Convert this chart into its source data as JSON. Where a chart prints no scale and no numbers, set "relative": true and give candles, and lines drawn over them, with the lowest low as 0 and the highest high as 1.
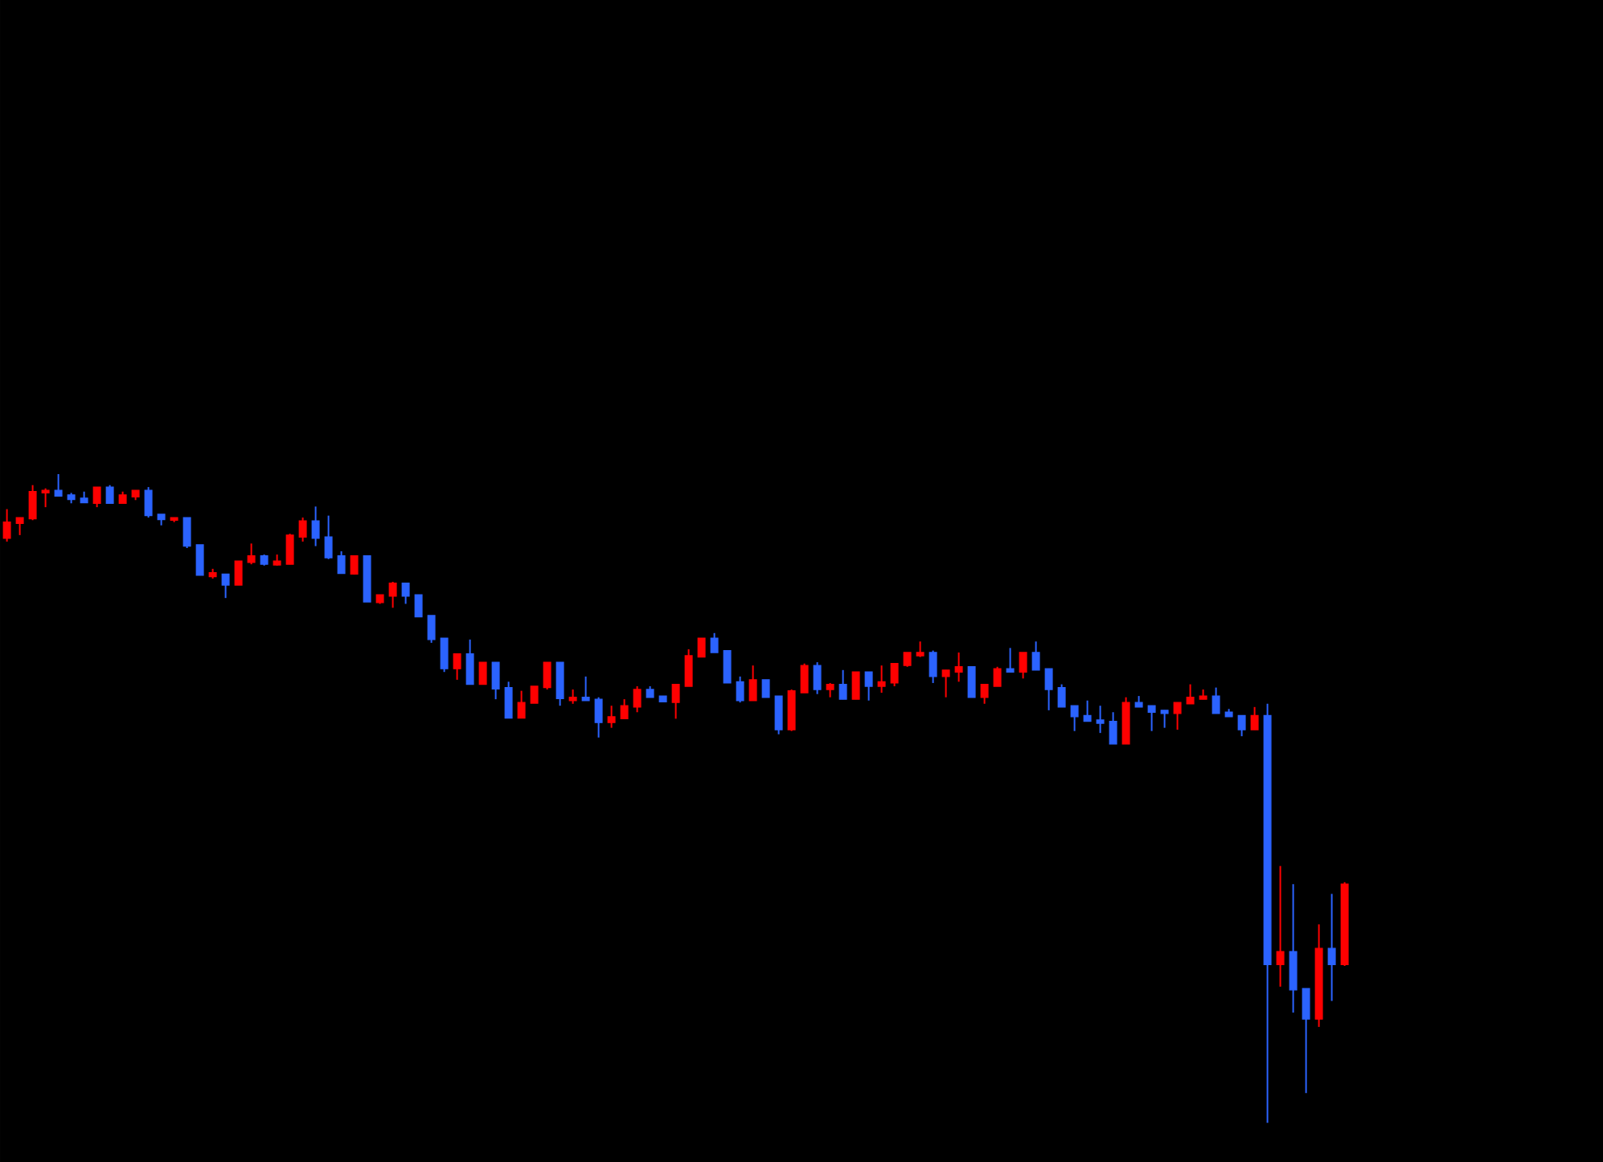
{
  "chart_data": {
    "type": "candlestick",
    "relative": true,
    "categories": [
      null,
      null,
      null,
      null,
      null,
      null,
      null,
      null,
      null,
      null,
      null,
      null,
      null,
      null,
      null,
      null,
      null,
      null,
      null,
      null,
      null,
      null,
      null,
      null,
      null,
      null,
      null,
      null,
      null,
      null,
      null,
      null,
      null,
      null,
      null,
      null,
      null,
      null,
      null,
      null,
      null,
      null,
      null,
      null,
      null,
      null,
      null,
      null,
      null,
      null,
      null,
      null,
      null,
      null,
      null,
      null,
      null,
      null,
      null,
      null,
      null,
      null,
      null,
      null,
      null,
      null,
      null,
      null,
      null,
      null,
      null,
      null,
      null,
      null,
      null,
      null,
      null,
      null,
      null,
      null,
      null,
      null,
      null,
      null,
      null,
      null,
      null,
      null,
      null,
      null,
      null,
      null,
      null,
      null,
      null,
      null,
      null,
      null,
      null,
      null,
      null,
      null,
      null,
      null,
      null
    ],
    "ohlc": [
      [
        0.901,
        0.946,
        0.896,
        0.926
      ],
      [
        0.924,
        0.933,
        0.906,
        0.933
      ],
      [
        0.931,
        0.983,
        0.929,
        0.973
      ],
      [
        0.971,
        0.978,
        0.949,
        0.975
      ],
      [
        0.975,
        1,
        0.966,
        0.966
      ],
      [
        0.968,
        0.971,
        0.955,
        0.961
      ],
      [
        0.963,
        0.973,
        0.956,
        0.956
      ],
      [
        0.955,
        0.98,
        0.949,
        0.98
      ],
      [
        0.98,
        0.983,
        0.955,
        0.955
      ],
      [
        0.955,
        0.973,
        0.955,
        0.968
      ],
      [
        0.965,
        0.975,
        0.96,
        0.975
      ],
      [
        0.975,
        0.98,
        0.933,
        0.936
      ],
      [
        0.938,
        0.938,
        0.921,
        0.93
      ],
      [
        0.929,
        0.933,
        0.926,
        0.933
      ],
      [
        0.933,
        0.933,
        0.886,
        0.889
      ],
      [
        0.891,
        0.891,
        0.844,
        0.844
      ],
      [
        0.842,
        0.854,
        0.839,
        0.848
      ],
      [
        0.846,
        0.846,
        0.809,
        0.829
      ],
      [
        0.829,
        0.866,
        0.829,
        0.866
      ],
      [
        0.864,
        0.893,
        0.861,
        0.874
      ],
      [
        0.874,
        0.876,
        0.859,
        0.861
      ],
      [
        0.86,
        0.876,
        0.859,
        0.866
      ],
      [
        0.861,
        0.908,
        0.861,
        0.906
      ],
      [
        0.903,
        0.933,
        0.896,
        0.928
      ],
      [
        0.928,
        0.95,
        0.889,
        0.901
      ],
      [
        0.903,
        0.936,
        0.869,
        0.871
      ],
      [
        0.874,
        0.881,
        0.847,
        0.847
      ],
      [
        0.846,
        0.874,
        0.845,
        0.874
      ],
      [
        0.874,
        0.874,
        0.803,
        0.803
      ],
      [
        0.802,
        0.814,
        0.8,
        0.814
      ],
      [
        0.812,
        0.834,
        0.794,
        0.832
      ],
      [
        0.832,
        0.832,
        0.8,
        0.812
      ],
      [
        0.814,
        0.814,
        0.78,
        0.78
      ],
      [
        0.782,
        0.782,
        0.74,
        0.745
      ],
      [
        0.747,
        0.747,
        0.695,
        0.7
      ],
      [
        0.7,
        0.723,
        0.683,
        0.723
      ],
      [
        0.723,
        0.745,
        0.676,
        0.676
      ],
      [
        0.676,
        0.71,
        0.676,
        0.71
      ],
      [
        0.71,
        0.71,
        0.653,
        0.669
      ],
      [
        0.671,
        0.68,
        0.624,
        0.624
      ],
      [
        0.624,
        0.666,
        0.624,
        0.648
      ],
      [
        0.647,
        0.673,
        0.647,
        0.673
      ],
      [
        0.671,
        0.71,
        0.668,
        0.71
      ],
      [
        0.71,
        0.71,
        0.643,
        0.654
      ],
      [
        0.651,
        0.668,
        0.646,
        0.656
      ],
      [
        0.656,
        0.688,
        0.651,
        0.651
      ],
      [
        0.653,
        0.656,
        0.594,
        0.617
      ],
      [
        0.617,
        0.643,
        0.609,
        0.626
      ],
      [
        0.623,
        0.653,
        0.623,
        0.643
      ],
      [
        0.641,
        0.673,
        0.633,
        0.668
      ],
      [
        0.668,
        0.673,
        0.656,
        0.656
      ],
      [
        0.658,
        0.658,
        0.649,
        0.649
      ],
      [
        0.648,
        0.676,
        0.623,
        0.676
      ],
      [
        0.673,
        0.73,
        0.673,
        0.72
      ],
      [
        0.718,
        0.747,
        0.718,
        0.747
      ],
      [
        0.747,
        0.755,
        0.725,
        0.725
      ],
      [
        0.728,
        0.728,
        0.678,
        0.678
      ],
      [
        0.68,
        0.688,
        0.648,
        0.651
      ],
      [
        0.651,
        0.705,
        0.651,
        0.683
      ],
      [
        0.683,
        0.683,
        0.656,
        0.656
      ],
      [
        0.658,
        0.658,
        0.599,
        0.606
      ],
      [
        0.606,
        0.668,
        0.604,
        0.666
      ],
      [
        0.663,
        0.708,
        0.663,
        0.705
      ],
      [
        0.705,
        0.71,
        0.661,
        0.668
      ],
      [
        0.668,
        0.678,
        0.656,
        0.676
      ],
      [
        0.676,
        0.698,
        0.653,
        0.653
      ],
      [
        0.653,
        0.695,
        0.653,
        0.695
      ],
      [
        0.695,
        0.695,
        0.651,
        0.673
      ],
      [
        0.673,
        0.705,
        0.663,
        0.68
      ],
      [
        0.678,
        0.708,
        0.673,
        0.708
      ],
      [
        0.705,
        0.725,
        0.703,
        0.725
      ],
      [
        0.72,
        0.742,
        0.718,
        0.725
      ],
      [
        0.725,
        0.728,
        0.678,
        0.688
      ],
      [
        0.688,
        0.698,
        0.656,
        0.698
      ],
      [
        0.695,
        0.725,
        0.68,
        0.703
      ],
      [
        0.703,
        0.703,
        0.656,
        0.656
      ],
      [
        0.656,
        0.676,
        0.646,
        0.676
      ],
      [
        0.673,
        0.703,
        0.673,
        0.7
      ],
      [
        0.7,
        0.732,
        0.695,
        0.695
      ],
      [
        0.695,
        0.725,
        0.685,
        0.725
      ],
      [
        0.725,
        0.742,
        0.698,
        0.698
      ],
      [
        0.7,
        0.7,
        0.636,
        0.668
      ],
      [
        0.671,
        0.676,
        0.641,
        0.641
      ],
      [
        0.643,
        0.643,
        0.604,
        0.626
      ],
      [
        0.628,
        0.651,
        0.619,
        0.619
      ],
      [
        0.621,
        0.643,
        0.601,
        0.616
      ],
      [
        0.619,
        0.633,
        0.584,
        0.584
      ],
      [
        0.584,
        0.656,
        0.584,
        0.648
      ],
      [
        0.648,
        0.658,
        0.641,
        0.641
      ],
      [
        0.643,
        0.643,
        0.604,
        0.633
      ],
      [
        0.636,
        0.636,
        0.609,
        0.631
      ],
      [
        0.631,
        0.648,
        0.606,
        0.648
      ],
      [
        0.646,
        0.676,
        0.646,
        0.656
      ],
      [
        0.653,
        0.668,
        0.653,
        0.658
      ],
      [
        0.658,
        0.671,
        0.631,
        0.631
      ],
      [
        0.633,
        0.638,
        0.626,
        0.626
      ],
      [
        0.628,
        0.628,
        0.596,
        0.606
      ],
      [
        0.606,
        0.641,
        0.606,
        0.628
      ],
      [
        0.628,
        0.646,
        0,
        0.244
      ],
      [
        0.244,
        0.396,
        0.21,
        0.264
      ],
      [
        0.264,
        0.368,
        0.17,
        0.205
      ],
      [
        0.207,
        0.207,
        0.046,
        0.16
      ],
      [
        0.16,
        0.306,
        0.148,
        0.269
      ],
      [
        0.269,
        0.353,
        0.188,
        0.244
      ],
      [
        0.244,
        0.371,
        0.242,
        0.368
      ]
    ],
    "colors": [
      "#ff0000",
      "#ff0000",
      "#ff0000",
      "#ff0000",
      "#2b63ff",
      "#2b63ff",
      "#2b63ff",
      "#ff0000",
      "#2b63ff",
      "#ff0000",
      "#ff0000",
      "#2b63ff",
      "#2b63ff",
      "#ff0000",
      "#2b63ff",
      "#2b63ff",
      "#ff0000",
      "#2b63ff",
      "#ff0000",
      "#ff0000",
      "#2b63ff",
      "#ff0000",
      "#ff0000",
      "#ff0000",
      "#2b63ff",
      "#2b63ff",
      "#2b63ff",
      "#ff0000",
      "#2b63ff",
      "#ff0000",
      "#ff0000",
      "#2b63ff",
      "#2b63ff",
      "#2b63ff",
      "#2b63ff",
      "#ff0000",
      "#2b63ff",
      "#ff0000",
      "#2b63ff",
      "#2b63ff",
      "#ff0000",
      "#ff0000",
      "#ff0000",
      "#2b63ff",
      "#ff0000",
      "#2b63ff",
      "#2b63ff",
      "#ff0000",
      "#ff0000",
      "#ff0000",
      "#2b63ff",
      "#2b63ff",
      "#ff0000",
      "#ff0000",
      "#ff0000",
      "#2b63ff",
      "#2b63ff",
      "#2b63ff",
      "#ff0000",
      "#2b63ff",
      "#2b63ff",
      "#ff0000",
      "#ff0000",
      "#2b63ff",
      "#ff0000",
      "#2b63ff",
      "#ff0000",
      "#2b63ff",
      "#ff0000",
      "#ff0000",
      "#ff0000",
      "#ff0000",
      "#2b63ff",
      "#ff0000",
      "#ff0000",
      "#2b63ff",
      "#ff0000",
      "#ff0000",
      "#2b63ff",
      "#ff0000",
      "#2b63ff",
      "#2b63ff",
      "#2b63ff",
      "#2b63ff",
      "#2b63ff",
      "#2b63ff",
      "#2b63ff",
      "#ff0000",
      "#2b63ff",
      "#2b63ff",
      "#2b63ff",
      "#ff0000",
      "#ff0000",
      "#ff0000",
      "#2b63ff",
      "#2b63ff",
      "#2b63ff",
      "#ff0000",
      "#2b63ff",
      "#ff0000",
      "#2b63ff",
      "#2b63ff",
      "#ff0000",
      "#2b63ff",
      "#ff0000"
    ]
  }
}
